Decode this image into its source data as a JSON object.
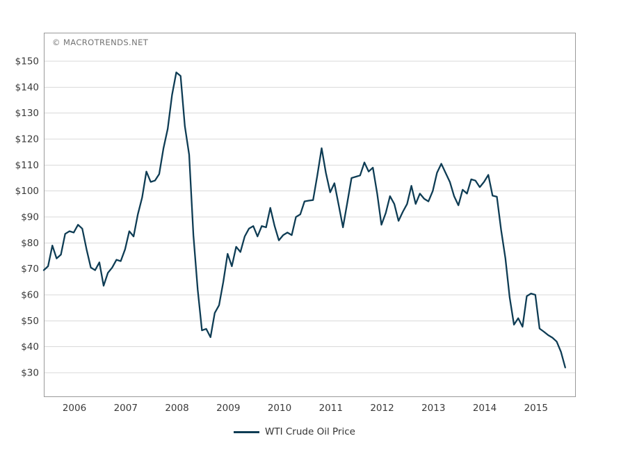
{
  "watermark": "© MACROTRENDS.NET",
  "legend": {
    "label": "WTI Crude Oil Price"
  },
  "colors": {
    "line": "#0e3c54",
    "grid": "#d9d9d9",
    "border": "#999999",
    "axis_text": "#3a3a3a",
    "watermark": "#737373",
    "background": "#ffffff"
  },
  "chart_data": {
    "type": "line",
    "title": "",
    "series_name": "WTI Crude Oil Price",
    "frequency": "monthly",
    "x_start": "2005-11",
    "x_end": "2016-01",
    "x_tick_labels": [
      "2006",
      "2007",
      "2008",
      "2009",
      "2010",
      "2011",
      "2012",
      "2013",
      "2014",
      "2015"
    ],
    "y_tick_labels": [
      "$150",
      "$140",
      "$130",
      "$120",
      "$110",
      "$100",
      "$90",
      "$80",
      "$70",
      "$60",
      "$50",
      "$40",
      "$30"
    ],
    "y_tick_values": [
      150,
      140,
      130,
      120,
      110,
      100,
      90,
      80,
      70,
      60,
      50,
      40,
      30
    ],
    "ylim": [
      27,
      155
    ],
    "grid": "horizontal-only",
    "legend_position": "bottom-center",
    "values": [
      69.5,
      71,
      79,
      74,
      75.5,
      83.5,
      84.5,
      84,
      87,
      85.5,
      77.5,
      70.5,
      69.5,
      72.5,
      63.5,
      68.5,
      70.5,
      73.5,
      73,
      77.5,
      84.5,
      82.5,
      91,
      97.5,
      107.5,
      103.5,
      104,
      106.5,
      116.5,
      124,
      137,
      145.7,
      144.3,
      125,
      114,
      83,
      62,
      46.3,
      46.9,
      43.7,
      53,
      56,
      65,
      75.8,
      71,
      78.5,
      76.5,
      82.5,
      85.5,
      86.5,
      82.5,
      86.5,
      86,
      93.5,
      86.5,
      81,
      83,
      84,
      83,
      90,
      91,
      96,
      96.3,
      96.5,
      106,
      116.5,
      107,
      99.5,
      103,
      94.5,
      86,
      95.5,
      105,
      105.5,
      106,
      111,
      107.5,
      109,
      99,
      87,
      91.5,
      98,
      95,
      88.5,
      92,
      95,
      102,
      95,
      99,
      97,
      96,
      100,
      107,
      110.5,
      107,
      103.5,
      98,
      94.5,
      100.5,
      99,
      104.5,
      104,
      101.5,
      103.5,
      106.2,
      98.2,
      97.8,
      85,
      74,
      59,
      48.5,
      51,
      47.7,
      59.5,
      60.5,
      60,
      47,
      45.8,
      44.5,
      43.5,
      42,
      38,
      32
    ]
  }
}
